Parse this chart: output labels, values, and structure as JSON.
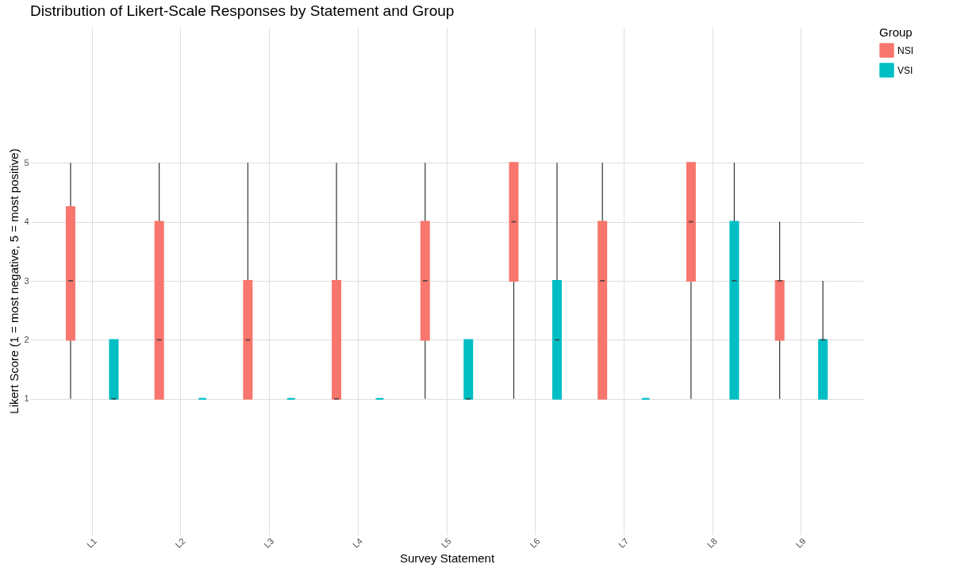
{
  "chart_data": {
    "type": "box",
    "title": "Distribution of Likert-Scale Responses by Statement and Group",
    "xlabel": "Survey Statement",
    "ylabel": "Likert Score (1 = most negative, 5 = most positive)",
    "legend_title": "Group",
    "categories": [
      "L1",
      "L2",
      "L3",
      "L4",
      "L5",
      "L6",
      "L7",
      "L8",
      "L9"
    ],
    "ylim": [
      -1.3,
      7.3
    ],
    "yticks": [
      1,
      2,
      3,
      4,
      5
    ],
    "grid": true,
    "legend": "right",
    "series": [
      {
        "name": "NSI",
        "color": "#f8766d",
        "boxes": [
          {
            "low": 1,
            "q1": 2,
            "median": 3,
            "q3": 4.25,
            "high": 5
          },
          {
            "low": 1,
            "q1": 1,
            "median": 2,
            "q3": 4,
            "high": 5
          },
          {
            "low": 1,
            "q1": 1,
            "median": 2,
            "q3": 3,
            "high": 5
          },
          {
            "low": 1,
            "q1": 1,
            "median": 1,
            "q3": 3,
            "high": 5
          },
          {
            "low": 1,
            "q1": 2,
            "median": 3,
            "q3": 4,
            "high": 5
          },
          {
            "low": 1,
            "q1": 3,
            "median": 4,
            "q3": 5,
            "high": 5
          },
          {
            "low": 1,
            "q1": 1,
            "median": 3,
            "q3": 4,
            "high": 5
          },
          {
            "low": 1,
            "q1": 3,
            "median": 4,
            "q3": 5,
            "high": 5
          },
          {
            "low": 1,
            "q1": 2,
            "median": 3,
            "q3": 3,
            "high": 4
          }
        ]
      },
      {
        "name": "VSI",
        "color": "#00bfc4",
        "boxes": [
          {
            "low": 1,
            "q1": 1,
            "median": 1,
            "q3": 2,
            "high": 2
          },
          {
            "low": 1,
            "q1": 1,
            "median": 1,
            "q3": 1,
            "high": 1
          },
          {
            "low": 1,
            "q1": 1,
            "median": 1,
            "q3": 1,
            "high": 1
          },
          {
            "low": 1,
            "q1": 1,
            "median": 1,
            "q3": 1,
            "high": 1
          },
          {
            "low": 1,
            "q1": 1,
            "median": 1,
            "q3": 2,
            "high": 2
          },
          {
            "low": 1,
            "q1": 1,
            "median": 2,
            "q3": 3,
            "high": 5
          },
          {
            "low": 1,
            "q1": 1,
            "median": 1,
            "q3": 1,
            "high": 1
          },
          {
            "low": 1,
            "q1": 1,
            "median": 3,
            "q3": 4,
            "high": 5
          },
          {
            "low": 1,
            "q1": 1,
            "median": 2,
            "q3": 2,
            "high": 3
          }
        ]
      }
    ]
  }
}
